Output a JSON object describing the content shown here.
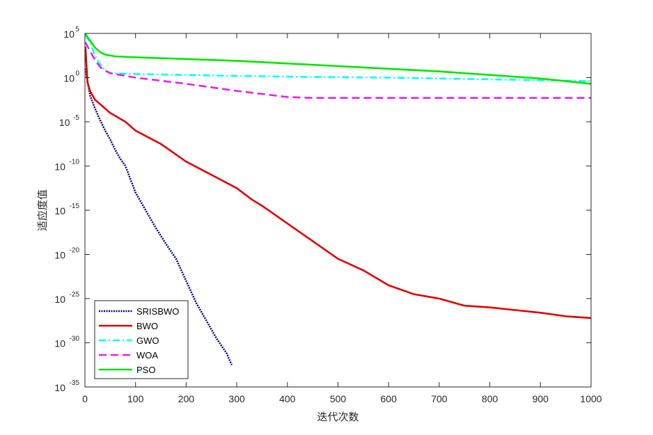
{
  "chart_data": {
    "type": "line",
    "title": "",
    "xlabel": "迭代次数",
    "ylabel": "适应度值",
    "xlim": [
      0,
      1000
    ],
    "ylim_log10": [
      -35,
      5
    ],
    "yscale": "log",
    "grid": false,
    "legend_position": "bottom-left",
    "x_ticks": [
      0,
      100,
      200,
      300,
      400,
      500,
      600,
      700,
      800,
      900,
      1000
    ],
    "y_ticks_exp": [
      5,
      0,
      -5,
      -10,
      -15,
      -20,
      -25,
      -30,
      -35
    ],
    "y_tick_labels": [
      "10^5",
      "10^0",
      "10^-5",
      "10^-10",
      "10^-15",
      "10^-20",
      "10^-25",
      "10^-30",
      "10^-35"
    ],
    "series": [
      {
        "name": "SRISBWO",
        "color": "#00008b",
        "dash": "dotted",
        "x": [
          1,
          10,
          20,
          30,
          40,
          50,
          60,
          70,
          80,
          90,
          100,
          120,
          140,
          160,
          180,
          200,
          220,
          240,
          260,
          280,
          290
        ],
        "log10_y": [
          1.0,
          -2.0,
          -3.5,
          -4.8,
          -6.0,
          -7.0,
          -8.2,
          -9.2,
          -10.0,
          -11.5,
          -13.0,
          -15.0,
          -17.0,
          -18.8,
          -20.5,
          -23.0,
          -25.5,
          -27.5,
          -29.5,
          -31.2,
          -32.5
        ]
      },
      {
        "name": "BWO",
        "color": "#e00000",
        "dash": "solid",
        "x": [
          1,
          5,
          10,
          20,
          30,
          50,
          80,
          100,
          150,
          200,
          250,
          300,
          330,
          350,
          400,
          450,
          500,
          550,
          600,
          650,
          700,
          750,
          800,
          850,
          900,
          950,
          1000
        ],
        "log10_y": [
          3.5,
          -0.5,
          -1.5,
          -2.5,
          -3.0,
          -4.0,
          -5.0,
          -6.0,
          -7.5,
          -9.5,
          -11.0,
          -12.5,
          -13.8,
          -14.5,
          -16.5,
          -18.5,
          -20.5,
          -21.8,
          -23.5,
          -24.5,
          -25.0,
          -25.8,
          -26.0,
          -26.3,
          -26.6,
          -27.0,
          -27.2
        ]
      },
      {
        "name": "GWO",
        "color": "#00ffff",
        "dash": "dashdot",
        "x": [
          1,
          10,
          20,
          30,
          40,
          50,
          100,
          200,
          300,
          400,
          500,
          600,
          700,
          800,
          900,
          1000
        ],
        "log10_y": [
          4.8,
          4.0,
          2.5,
          1.5,
          0.8,
          0.5,
          0.4,
          0.3,
          0.2,
          0.1,
          0.05,
          0.0,
          -0.1,
          -0.2,
          -0.3,
          -0.4
        ]
      },
      {
        "name": "WOA",
        "color": "#e91ee9",
        "dash": "dashed",
        "x": [
          1,
          10,
          20,
          30,
          40,
          50,
          100,
          200,
          300,
          400,
          450,
          500,
          600,
          700,
          800,
          900,
          1000
        ],
        "log10_y": [
          4.0,
          3.0,
          2.0,
          1.2,
          0.8,
          0.5,
          0.0,
          -0.7,
          -1.5,
          -2.2,
          -2.3,
          -2.3,
          -2.3,
          -2.3,
          -2.3,
          -2.3,
          -2.3
        ]
      },
      {
        "name": "PSO",
        "color": "#00e600",
        "dash": "solid",
        "x": [
          1,
          5,
          10,
          20,
          30,
          40,
          60,
          100,
          200,
          300,
          400,
          500,
          600,
          700,
          800,
          900,
          950,
          1000
        ],
        "log10_y": [
          5.0,
          4.6,
          4.2,
          3.4,
          2.9,
          2.6,
          2.4,
          2.3,
          2.1,
          1.9,
          1.6,
          1.3,
          1.0,
          0.7,
          0.3,
          -0.1,
          -0.4,
          -0.7
        ]
      }
    ]
  }
}
